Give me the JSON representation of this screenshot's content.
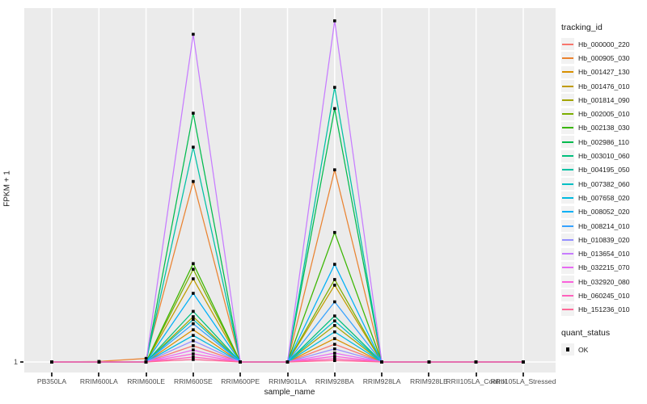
{
  "axes": {
    "y_title": "FPKM + 1",
    "x_title": "sample_name",
    "y_tick_labels": [
      "1"
    ]
  },
  "legend": {
    "tracking_id_title": "tracking_id",
    "quant_status_title": "quant_status",
    "quant_status_items": [
      {
        "label": "OK",
        "marker": "black-square",
        "color": "#000000"
      }
    ]
  },
  "colors": {
    "panel_bg": "#EBEBEB",
    "grid": "#FFFFFF",
    "tick_mark": "#333333",
    "axis_text": "#4D4D4D",
    "title_text": "#1A1A1A",
    "marker": "#000000",
    "legend_key_bg": "#F2F2F2"
  },
  "chart_data": {
    "type": "line",
    "title": "",
    "xlabel": "sample_name",
    "ylabel": "FPKM + 1",
    "y_axis": {
      "labeled_tick": "1",
      "values_units": "fraction of panel height above the y=1 baseline (axis shows only the tick '1')"
    },
    "grid": "major-only",
    "legend_position": "right",
    "marker": "black-square",
    "categories": [
      "PB350LA",
      "RRIM600LA",
      "RRIM600LE",
      "RRIM600SE",
      "RRIM600PE",
      "RRIM901LA",
      "RRIM928BA",
      "RRIM928LA",
      "RRIM928LE",
      "RRII105LA_Control",
      "RRII105LA_Stressed"
    ],
    "series": [
      {
        "name": "Hb_000000_220",
        "color": "#F8766D",
        "values": [
          0,
          0,
          0,
          0.046,
          0,
          0,
          0.05,
          0,
          0,
          0,
          0
        ]
      },
      {
        "name": "Hb_000905_030",
        "color": "#EA8331",
        "values": [
          0,
          0.0015,
          0.01,
          0.51,
          0,
          0,
          0.543,
          0,
          0,
          0,
          0
        ]
      },
      {
        "name": "Hb_001427_130",
        "color": "#D89000",
        "values": [
          0,
          0,
          0,
          0.091,
          0,
          0,
          0.066,
          0,
          0,
          0,
          0
        ]
      },
      {
        "name": "Hb_001476_010",
        "color": "#C09B00",
        "values": [
          0,
          0,
          0,
          0.235,
          0,
          0,
          0.217,
          0,
          0,
          0,
          0
        ]
      },
      {
        "name": "Hb_001814_090",
        "color": "#A3A500",
        "values": [
          0,
          0,
          0,
          0.128,
          0,
          0,
          0.103,
          0,
          0,
          0,
          0
        ]
      },
      {
        "name": "Hb_002005_010",
        "color": "#7CAE00",
        "values": [
          0,
          0,
          0,
          0.262,
          0,
          0,
          0.233,
          0,
          0,
          0,
          0
        ]
      },
      {
        "name": "Hb_002138_030",
        "color": "#39B600",
        "values": [
          0,
          0,
          0,
          0.278,
          0,
          0,
          0.366,
          0,
          0,
          0,
          0
        ]
      },
      {
        "name": "Hb_002986_110",
        "color": "#00BB4E",
        "values": [
          0,
          0,
          0,
          0.703,
          0,
          0,
          0.716,
          0,
          0,
          0,
          0
        ]
      },
      {
        "name": "Hb_003010_060",
        "color": "#00BF7D",
        "values": [
          0,
          0,
          0,
          0.143,
          0,
          0,
          0.13,
          0,
          0,
          0,
          0
        ]
      },
      {
        "name": "Hb_004195_050",
        "color": "#00C1A3",
        "values": [
          0,
          0,
          0,
          0.607,
          0,
          0,
          0.776,
          0,
          0,
          0,
          0
        ]
      },
      {
        "name": "Hb_007382_060",
        "color": "#00BFC4",
        "values": [
          0,
          0,
          0,
          0.12,
          0,
          0,
          0.116,
          0,
          0,
          0,
          0
        ]
      },
      {
        "name": "Hb_007658_020",
        "color": "#00BAE0",
        "values": [
          0,
          0,
          0,
          0.075,
          0,
          0,
          0.085,
          0,
          0,
          0,
          0
        ]
      },
      {
        "name": "Hb_008052_020",
        "color": "#00B0F6",
        "values": [
          0,
          0,
          0,
          0.194,
          0,
          0,
          0.276,
          0,
          0,
          0,
          0
        ]
      },
      {
        "name": "Hb_008214_010",
        "color": "#35A2FF",
        "values": [
          0,
          0,
          0,
          0.108,
          0,
          0,
          0.17,
          0,
          0,
          0,
          0
        ]
      },
      {
        "name": "Hb_010839_020",
        "color": "#9590FF",
        "values": [
          0,
          0,
          0,
          0.06,
          0,
          0,
          0.037,
          0,
          0,
          0,
          0
        ]
      },
      {
        "name": "Hb_013654_010",
        "color": "#C77CFF",
        "values": [
          0,
          0,
          0,
          0.926,
          0,
          0,
          0.964,
          0,
          0,
          0,
          0
        ]
      },
      {
        "name": "Hb_032215_070",
        "color": "#E76BF3",
        "values": [
          0,
          0,
          0,
          0.034,
          0,
          0,
          0.025,
          0,
          0,
          0,
          0
        ]
      },
      {
        "name": "Hb_032920_080",
        "color": "#FA62DB",
        "values": [
          0,
          0,
          0,
          0.023,
          0,
          0,
          0.016,
          0,
          0,
          0,
          0
        ]
      },
      {
        "name": "Hb_060245_010",
        "color": "#FF62BC",
        "values": [
          0,
          0,
          0,
          0.014,
          0,
          0,
          0.009,
          0,
          0,
          0,
          0
        ]
      },
      {
        "name": "Hb_151236_010",
        "color": "#FF6A98",
        "values": [
          0,
          0,
          0,
          0.007,
          0,
          0,
          0.004,
          0,
          0,
          0,
          0
        ]
      }
    ]
  }
}
